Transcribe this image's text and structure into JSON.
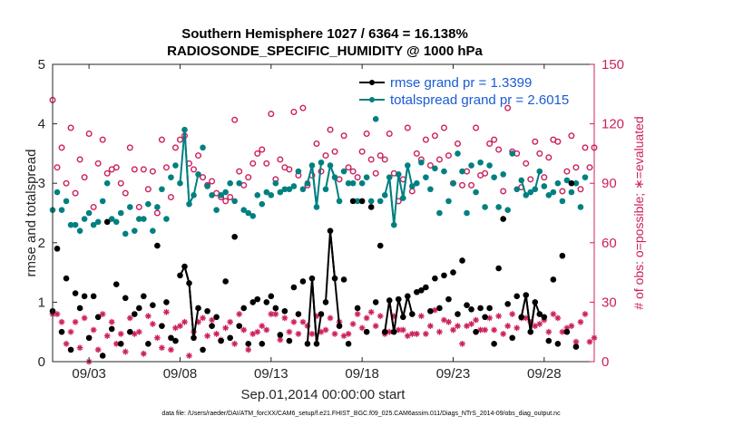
{
  "chart_data": {
    "type": "line",
    "title_line1": "Southern Hemisphere 1027 / 6364 = 16.138%",
    "title_line2": "RADIOSONDE_SPECIFIC_HUMIDITY @ 1000 hPa",
    "xlabel": "Sep.01,2014 00:00:00 start",
    "ylabel_left": "rmse and totalspread",
    "ylabel_right": "# of obs: o=possible; ∗=evaluated",
    "footnote": "data file: /Users/raeder/DAI/ATM_forcXX/CAM6_setup/f.e21.FHIST_BGC.f09_025.CAM6assim.011/Diags_NTrS_2014-09/obs_diag_output.nc",
    "xlim": [
      1.0,
      30.75
    ],
    "ylim_left": [
      0,
      5
    ],
    "ylim_right": [
      0,
      150
    ],
    "xticks": [
      {
        "v": 3,
        "label": "09/03"
      },
      {
        "v": 8,
        "label": "09/08"
      },
      {
        "v": 13,
        "label": "09/13"
      },
      {
        "v": 18,
        "label": "09/18"
      },
      {
        "v": 23,
        "label": "09/23"
      },
      {
        "v": 28,
        "label": "09/28"
      }
    ],
    "yticks_left": [
      "0",
      "1",
      "2",
      "3",
      "4",
      "5"
    ],
    "yticks_right": [
      "0",
      "30",
      "60",
      "90",
      "120",
      "150"
    ],
    "colors": {
      "rmse": "#000000",
      "spread": "#008080",
      "right_axis": "#cc1f5e"
    },
    "legend": {
      "position": "top-right",
      "entries": [
        "rmse grand pr = 1.3399",
        "totalspread grand pr = 2.6015"
      ]
    },
    "time": [
      1.0,
      1.25,
      1.5,
      1.75,
      2.0,
      2.25,
      2.5,
      2.75,
      3.0,
      3.25,
      3.5,
      3.75,
      4.0,
      4.25,
      4.5,
      4.75,
      5.0,
      5.25,
      5.5,
      5.75,
      6.0,
      6.25,
      6.5,
      6.75,
      7.0,
      7.25,
      7.5,
      7.75,
      8.0,
      8.25,
      8.5,
      8.75,
      9.0,
      9.25,
      9.5,
      9.75,
      10.0,
      10.25,
      10.5,
      10.75,
      11.0,
      11.25,
      11.5,
      11.75,
      12.0,
      12.25,
      12.5,
      12.75,
      13.0,
      13.25,
      13.5,
      13.75,
      14.0,
      14.25,
      14.5,
      14.75,
      15.0,
      15.25,
      15.5,
      15.75,
      16.0,
      16.25,
      16.5,
      16.75,
      17.0,
      17.25,
      17.5,
      17.75,
      18.0,
      18.25,
      18.5,
      18.75,
      19.0,
      19.25,
      19.5,
      19.75,
      20.0,
      20.25,
      20.5,
      20.75,
      21.0,
      21.25,
      21.5,
      21.75,
      22.0,
      22.25,
      22.5,
      22.75,
      23.0,
      23.25,
      23.5,
      23.75,
      24.0,
      24.25,
      24.5,
      24.75,
      25.0,
      25.25,
      25.5,
      25.75,
      26.0,
      26.25,
      26.5,
      26.75,
      27.0,
      27.25,
      27.5,
      27.75,
      28.0,
      28.25,
      28.5,
      28.75,
      29.0,
      29.25,
      29.5,
      29.75,
      30.0,
      30.25,
      30.5,
      30.75
    ],
    "series": [
      {
        "name": "rmse",
        "segments": [
          [
            19.5,
            20.5
          ],
          [
            16.0,
            16.5
          ],
          [
            8.25,
            8.75
          ],
          [
            20.25,
            20.75
          ],
          [
            15.25,
            15.75
          ],
          [
            19.25,
            19.75
          ],
          [
            27.0,
            27.75
          ],
          [
            8.0,
            8.5
          ],
          [
            16.25,
            16.75
          ],
          [
            15.0,
            15.5
          ],
          [
            26.75,
            27.5
          ],
          [
            8.5,
            9.0
          ]
        ],
        "values": [
          0.85,
          1.9,
          0.5,
          1.4,
          0.2,
          1.15,
          0.9,
          1.1,
          0.4,
          1.1,
          0.75,
          0.1,
          2.35,
          0.55,
          1.3,
          0.3,
          1.07,
          0.5,
          0.8,
          0.9,
          1.1,
          0.3,
          0.95,
          1.95,
          0.6,
          1.0,
          0.4,
          0.35,
          1.45,
          1.6,
          1.32,
          0.4,
          0.9,
          0.2,
          0.85,
          0.6,
          0.75,
          0.35,
          1.35,
          0.4,
          2.1,
          0.6,
          0.9,
          0.3,
          1.0,
          1.05,
          0.3,
          1.0,
          1.1,
          0.9,
          0.45,
          0.85,
          0.35,
          1.25,
          0.8,
          1.35,
          0.3,
          1.4,
          0.3,
          0.8,
          1.0,
          2.2,
          1.4,
          0.6,
          1.38,
          0.3,
          2.7,
          0.9,
          2.7,
          0.5,
          2.6,
          1.0,
          1.95,
          0.5,
          1.03,
          0.5,
          1.05,
          0.75,
          1.1,
          0.8,
          1.17,
          1.2,
          1.25,
          0.85,
          1.4,
          0.9,
          1.45,
          1.05,
          1.5,
          0.8,
          1.7,
          0.95,
          0.88,
          0.5,
          0.9,
          0.75,
          0.9,
          0.3,
          1.57,
          2.4,
          0.97,
          0.4,
          1.1,
          0.75,
          1.12,
          0.5,
          1.0,
          0.8,
          0.75,
          0.35,
          1.38,
          0.3,
          1.78,
          0.5,
          3.0,
          0.25
        ]
      },
      {
        "name": "totalspread",
        "segments": [
          [
            19.5,
            20.5
          ],
          [
            16.0,
            16.5
          ],
          [
            8.25,
            8.75
          ],
          [
            20.25,
            20.75
          ],
          [
            15.25,
            15.75
          ],
          [
            19.25,
            19.75
          ],
          [
            27.0,
            27.75
          ],
          [
            8.0,
            8.5
          ],
          [
            16.25,
            16.75
          ],
          [
            15.0,
            15.5
          ],
          [
            26.75,
            27.5
          ],
          [
            8.5,
            9.0
          ]
        ],
        "values": [
          2.55,
          2.85,
          2.55,
          2.7,
          2.3,
          2.3,
          2.2,
          2.4,
          2.5,
          2.3,
          2.35,
          2.7,
          3.0,
          2.4,
          2.35,
          2.5,
          2.15,
          2.6,
          2.2,
          2.4,
          2.4,
          2.65,
          2.2,
          2.6,
          2.9,
          2.4,
          3.1,
          3.3,
          3.0,
          3.9,
          2.65,
          2.8,
          3.15,
          3.6,
          2.95,
          2.8,
          2.55,
          2.8,
          2.85,
          3.0,
          2.7,
          3.0,
          2.55,
          2.5,
          2.45,
          2.8,
          2.65,
          2.85,
          2.8,
          3.0,
          2.85,
          2.9,
          2.9,
          2.95,
          3.2,
          2.9,
          3.0,
          3.3,
          2.6,
          3.35,
          2.9,
          3.3,
          3.1,
          2.7,
          3.2,
          3.0,
          3.0,
          2.7,
          3.0,
          3.1,
          2.7,
          4.08,
          2.7,
          2.8,
          3.1,
          2.3,
          3.15,
          2.75,
          3.3,
          2.95,
          3.0,
          3.35,
          3.1,
          2.9,
          3.25,
          2.5,
          3.2,
          2.7,
          3.0,
          3.5,
          3.2,
          2.5,
          3.3,
          2.85,
          3.35,
          2.6,
          3.3,
          3.1,
          2.6,
          3.15,
          2.55,
          3.5,
          2.9,
          3.05,
          2.8,
          2.85,
          2.9,
          3.2,
          2.95,
          2.8,
          2.85,
          3.0,
          2.7,
          3.05,
          2.85,
          3.0,
          2.6,
          3.1
        ]
      },
      {
        "name": "obs_possible",
        "axis": "right",
        "values": [
          132,
          98,
          108,
          90,
          118,
          85,
          102,
          93,
          115,
          78,
          100,
          112,
          95,
          97,
          98,
          90,
          85,
          108,
          97,
          78,
          97,
          87,
          96,
          75,
          112,
          98,
          83,
          108,
          112,
          114,
          100,
          97,
          104,
          93,
          89,
          91,
          85,
          83,
          81,
          83,
          122,
          96,
          89,
          93,
          100,
          105,
          107,
          100,
          125,
          92,
          102,
          98,
          97,
          126,
          94,
          128,
          89,
          94,
          110,
          96,
          104,
          117,
          106,
          92,
          114,
          98,
          96,
          93,
          106,
          115,
          102,
          95,
          104,
          102,
          115,
          95,
          81,
          92,
          118,
          86,
          105,
          102,
          112,
          99,
          114,
          102,
          118,
          104,
          90,
          110,
          89,
          96,
          89,
          118,
          94,
          95,
          110,
          112,
          107,
          86,
          128,
          106,
          105,
          88,
          100,
          92,
          111,
          105,
          93,
          103,
          112,
          111,
          86,
          96,
          114,
          98,
          87,
          108,
          98,
          108
        ]
      },
      {
        "name": "obs_evaluated",
        "axis": "right",
        "values": [
          24,
          24,
          20,
          9,
          15,
          20,
          7,
          22,
          0,
          16,
          6,
          24,
          13,
          20,
          9,
          14,
          5,
          22,
          14,
          15,
          4,
          23,
          19,
          12,
          7,
          25,
          6,
          17,
          18,
          20,
          3,
          15,
          20,
          22,
          13,
          21,
          14,
          11,
          17,
          20,
          9,
          24,
          16,
          6,
          14,
          15,
          18,
          16,
          24,
          24,
          11,
          22,
          15,
          20,
          14,
          20,
          18,
          14,
          23,
          15,
          16,
          22,
          14,
          20,
          13,
          14,
          19,
          24,
          17,
          22,
          25,
          18,
          23,
          14,
          15,
          23,
          16,
          16,
          13,
          14,
          14,
          23,
          14,
          18,
          26,
          15,
          21,
          20,
          16,
          18,
          9,
          18,
          19,
          21,
          16,
          16,
          22,
          16,
          23,
          14,
          18,
          24,
          17,
          22,
          22,
          20,
          18,
          19,
          21,
          15,
          24,
          22,
          15,
          17,
          18,
          10,
          20,
          24,
          10,
          12
        ]
      }
    ]
  }
}
